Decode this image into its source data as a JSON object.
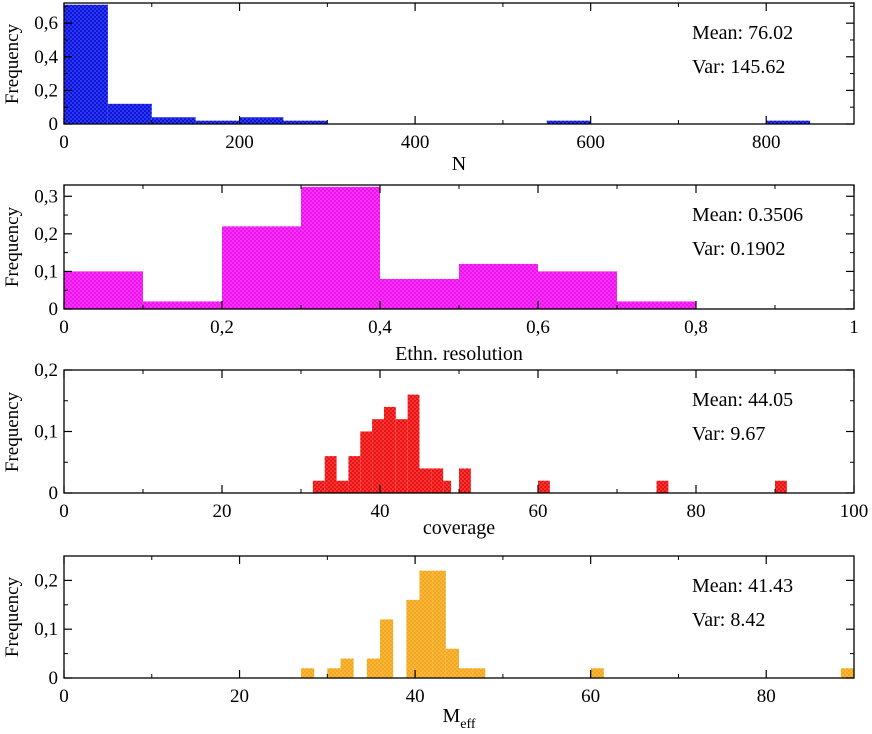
{
  "chart_data": [
    {
      "type": "bar",
      "name": "n",
      "xlabel": "N",
      "ylabel": "Frequency",
      "color": "#0a14e0",
      "xlim": [
        0,
        900
      ],
      "ylim": [
        0,
        0.72
      ],
      "xticks": [
        0,
        200,
        400,
        600,
        800
      ],
      "xtick_labels": [
        "0",
        "200",
        "400",
        "600",
        "800"
      ],
      "yticks": [
        0,
        0.2,
        0.4,
        0.6
      ],
      "ytick_labels": [
        "0",
        "0,2",
        "0,4",
        "0,6"
      ],
      "bins": [
        {
          "x0": 0,
          "x1": 50,
          "value": 0.71
        },
        {
          "x0": 50,
          "x1": 100,
          "value": 0.12
        },
        {
          "x0": 100,
          "x1": 150,
          "value": 0.04
        },
        {
          "x0": 150,
          "x1": 200,
          "value": 0.02
        },
        {
          "x0": 200,
          "x1": 250,
          "value": 0.04
        },
        {
          "x0": 250,
          "x1": 300,
          "value": 0.02
        },
        {
          "x0": 550,
          "x1": 600,
          "value": 0.02
        },
        {
          "x0": 800,
          "x1": 850,
          "value": 0.02
        }
      ],
      "mean_label": "Mean: 76.02",
      "var_label": "Var: 145.62"
    },
    {
      "type": "bar",
      "name": "ethn",
      "xlabel": "Ethn. resolution",
      "ylabel": "Frequency",
      "color": "#f010f0",
      "xlim": [
        0,
        1
      ],
      "ylim": [
        0,
        0.33
      ],
      "xticks": [
        0,
        0.2,
        0.4,
        0.6,
        0.8,
        1
      ],
      "xtick_labels": [
        "0",
        "0,2",
        "0,4",
        "0,6",
        "0,8",
        "1"
      ],
      "yticks": [
        0,
        0.1,
        0.2,
        0.3
      ],
      "ytick_labels": [
        "0",
        "0,1",
        "0,2",
        "0,3"
      ],
      "bins": [
        {
          "x0": 0.0,
          "x1": 0.1,
          "value": 0.1
        },
        {
          "x0": 0.1,
          "x1": 0.2,
          "value": 0.02
        },
        {
          "x0": 0.2,
          "x1": 0.3,
          "value": 0.22
        },
        {
          "x0": 0.3,
          "x1": 0.4,
          "value": 0.325
        },
        {
          "x0": 0.4,
          "x1": 0.5,
          "value": 0.08
        },
        {
          "x0": 0.5,
          "x1": 0.6,
          "value": 0.12
        },
        {
          "x0": 0.6,
          "x1": 0.7,
          "value": 0.1
        },
        {
          "x0": 0.7,
          "x1": 0.8,
          "value": 0.02
        }
      ],
      "mean_label": "Mean: 0.3506",
      "var_label": "Var: 0.1902"
    },
    {
      "type": "bar",
      "name": "coverage",
      "xlabel": "coverage",
      "ylabel": "Frequency",
      "color": "#ee1111",
      "xlim": [
        0,
        100
      ],
      "ylim": [
        0,
        0.2
      ],
      "xticks": [
        0,
        20,
        40,
        60,
        80,
        100
      ],
      "xtick_labels": [
        "0",
        "20",
        "40",
        "60",
        "80",
        "100"
      ],
      "yticks": [
        0,
        0.1,
        0.2
      ],
      "ytick_labels": [
        "0",
        "0,1",
        "0,2"
      ],
      "bins": [
        {
          "x0": 31.5,
          "x1": 33,
          "value": 0.02
        },
        {
          "x0": 33,
          "x1": 34.5,
          "value": 0.06
        },
        {
          "x0": 34.5,
          "x1": 36,
          "value": 0.02
        },
        {
          "x0": 36,
          "x1": 37.5,
          "value": 0.06
        },
        {
          "x0": 37.5,
          "x1": 39,
          "value": 0.1
        },
        {
          "x0": 39,
          "x1": 40.5,
          "value": 0.12
        },
        {
          "x0": 40.5,
          "x1": 42,
          "value": 0.14
        },
        {
          "x0": 42,
          "x1": 43.5,
          "value": 0.12
        },
        {
          "x0": 43.5,
          "x1": 45,
          "value": 0.16
        },
        {
          "x0": 45,
          "x1": 46.5,
          "value": 0.04
        },
        {
          "x0": 46.5,
          "x1": 48,
          "value": 0.04
        },
        {
          "x0": 48,
          "x1": 49,
          "value": 0.02
        },
        {
          "x0": 50,
          "x1": 51.5,
          "value": 0.04
        },
        {
          "x0": 60,
          "x1": 61.5,
          "value": 0.02
        },
        {
          "x0": 75,
          "x1": 76.5,
          "value": 0.02
        },
        {
          "x0": 90,
          "x1": 91.5,
          "value": 0.02
        }
      ],
      "mean_label": "Mean: 44.05",
      "var_label": "Var: 9.67"
    },
    {
      "type": "bar",
      "name": "meff",
      "xlabel": "M",
      "xlabel_sub": "eff",
      "ylabel": "Frequency",
      "color": "#f4a81c",
      "xlim": [
        0,
        90
      ],
      "ylim": [
        0,
        0.25
      ],
      "xticks": [
        0,
        20,
        40,
        60,
        80
      ],
      "xtick_labels": [
        "0",
        "20",
        "40",
        "60",
        "80"
      ],
      "yticks": [
        0,
        0.1,
        0.2
      ],
      "ytick_labels": [
        "0",
        "0,1",
        "0,2"
      ],
      "bins": [
        {
          "x0": 27,
          "x1": 28.5,
          "value": 0.02
        },
        {
          "x0": 30,
          "x1": 31.5,
          "value": 0.02
        },
        {
          "x0": 31.5,
          "x1": 33,
          "value": 0.04
        },
        {
          "x0": 34.5,
          "x1": 36,
          "value": 0.04
        },
        {
          "x0": 36,
          "x1": 37.5,
          "value": 0.12
        },
        {
          "x0": 39,
          "x1": 40.5,
          "value": 0.16
        },
        {
          "x0": 40.5,
          "x1": 42,
          "value": 0.22
        },
        {
          "x0": 42,
          "x1": 43.5,
          "value": 0.22
        },
        {
          "x0": 43.5,
          "x1": 45,
          "value": 0.06
        },
        {
          "x0": 45,
          "x1": 46.5,
          "value": 0.02
        },
        {
          "x0": 46.5,
          "x1": 48,
          "value": 0.02
        },
        {
          "x0": 60,
          "x1": 61.5,
          "value": 0.02
        },
        {
          "x0": 88.5,
          "x1": 90,
          "value": 0.02
        }
      ],
      "mean_label": "Mean: 41.43",
      "var_label": "Var: 8.42"
    }
  ]
}
